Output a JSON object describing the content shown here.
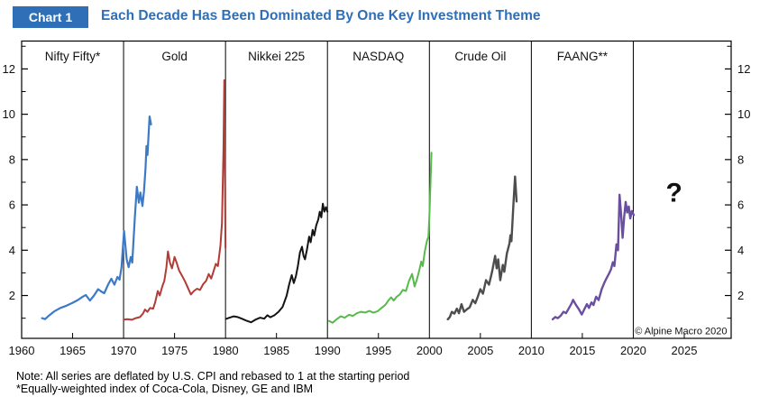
{
  "header": {
    "chart_label": "Chart 1",
    "title": "Each Decade Has Been Dominated By One Key Investment Theme",
    "accent_color": "#2e6fb8"
  },
  "notes": {
    "line1": "Note: All series are deflated by U.S. CPI and rebased to 1 at the starting period",
    "line2": "*Equally-weighted index of Coca-Cola, Disney, GE and IBM"
  },
  "chart_data": {
    "type": "line",
    "title": "Each Decade Has Been Dominated By One Key Investment Theme",
    "x_axis": {
      "range": [
        1960,
        2029.6
      ],
      "tick_labels": [
        1960,
        1965,
        1970,
        1975,
        1980,
        1985,
        1990,
        1995,
        2000,
        2005,
        2010,
        2015,
        2020,
        2025
      ],
      "minor_ticks": [
        1965,
        1975,
        1985,
        1995,
        2005,
        2015,
        2025
      ]
    },
    "y_axis": {
      "range": [
        0.11,
        13.23
      ],
      "major_ticks": [
        2,
        4,
        6,
        8,
        10,
        12
      ],
      "minor_ticks": [
        1,
        3,
        5,
        7,
        9,
        11,
        13
      ],
      "label_sides": "both"
    },
    "panel_dividers": [
      1970,
      1980,
      1990,
      2000,
      2010,
      2020
    ],
    "panels": [
      {
        "label": "Nifty Fifty*",
        "center_year": 1965
      },
      {
        "label": "Gold",
        "center_year": 1975
      },
      {
        "label": "Nikkei 225",
        "center_year": 1985
      },
      {
        "label": "NASDAQ",
        "center_year": 1995
      },
      {
        "label": "Crude Oil",
        "center_year": 2005
      },
      {
        "label": "FAANG**",
        "center_year": 2015
      }
    ],
    "series": [
      {
        "name": "Nifty Fifty",
        "color": "#3d7ac6",
        "width": 2.2,
        "points": [
          [
            1962.0,
            1.0
          ],
          [
            1962.3,
            0.96
          ],
          [
            1962.7,
            1.12
          ],
          [
            1963.2,
            1.3
          ],
          [
            1963.8,
            1.45
          ],
          [
            1964.4,
            1.55
          ],
          [
            1965.0,
            1.68
          ],
          [
            1965.5,
            1.8
          ],
          [
            1966.0,
            1.95
          ],
          [
            1966.3,
            2.02
          ],
          [
            1966.7,
            1.78
          ],
          [
            1967.1,
            2.0
          ],
          [
            1967.5,
            2.28
          ],
          [
            1967.8,
            2.18
          ],
          [
            1968.1,
            2.1
          ],
          [
            1968.5,
            2.5
          ],
          [
            1968.8,
            2.74
          ],
          [
            1969.1,
            2.48
          ],
          [
            1969.4,
            2.82
          ],
          [
            1969.6,
            2.7
          ],
          [
            1969.8,
            3.25
          ],
          [
            1970.05,
            4.85
          ],
          [
            1970.3,
            3.6
          ],
          [
            1970.5,
            3.25
          ],
          [
            1970.7,
            3.7
          ],
          [
            1970.85,
            3.45
          ],
          [
            1971.1,
            5.4
          ],
          [
            1971.3,
            6.8
          ],
          [
            1971.5,
            6.1
          ],
          [
            1971.65,
            6.55
          ],
          [
            1971.85,
            5.95
          ],
          [
            1972.0,
            6.6
          ],
          [
            1972.15,
            7.6
          ],
          [
            1972.25,
            8.6
          ],
          [
            1972.35,
            8.2
          ],
          [
            1972.55,
            9.9
          ],
          [
            1972.7,
            9.55
          ]
        ]
      },
      {
        "name": "Gold",
        "color": "#b23b36",
        "width": 2,
        "points": [
          [
            1970.0,
            0.94
          ],
          [
            1970.4,
            0.96
          ],
          [
            1970.8,
            0.93
          ],
          [
            1971.2,
            1.0
          ],
          [
            1971.6,
            1.05
          ],
          [
            1971.9,
            1.2
          ],
          [
            1972.1,
            1.38
          ],
          [
            1972.35,
            1.28
          ],
          [
            1972.6,
            1.45
          ],
          [
            1972.9,
            1.42
          ],
          [
            1973.1,
            1.7
          ],
          [
            1973.35,
            2.2
          ],
          [
            1973.55,
            2.0
          ],
          [
            1973.8,
            2.4
          ],
          [
            1974.0,
            2.65
          ],
          [
            1974.2,
            3.25
          ],
          [
            1974.35,
            3.95
          ],
          [
            1974.55,
            3.45
          ],
          [
            1974.75,
            3.2
          ],
          [
            1975.0,
            3.7
          ],
          [
            1975.2,
            3.45
          ],
          [
            1975.45,
            3.1
          ],
          [
            1975.7,
            2.9
          ],
          [
            1976.0,
            2.65
          ],
          [
            1976.3,
            2.35
          ],
          [
            1976.6,
            2.05
          ],
          [
            1976.9,
            2.2
          ],
          [
            1977.2,
            2.3
          ],
          [
            1977.5,
            2.25
          ],
          [
            1977.8,
            2.5
          ],
          [
            1978.1,
            2.65
          ],
          [
            1978.35,
            2.95
          ],
          [
            1978.6,
            2.75
          ],
          [
            1978.85,
            3.1
          ],
          [
            1979.05,
            3.4
          ],
          [
            1979.25,
            3.3
          ],
          [
            1979.5,
            4.2
          ],
          [
            1979.65,
            5.2
          ],
          [
            1979.8,
            8.5
          ],
          [
            1979.88,
            11.5
          ],
          [
            1980.0,
            4.1
          ]
        ]
      },
      {
        "name": "Nikkei 225",
        "color": "#141414",
        "width": 2,
        "points": [
          [
            1980.05,
            0.97
          ],
          [
            1980.4,
            1.02
          ],
          [
            1980.8,
            1.08
          ],
          [
            1981.2,
            1.05
          ],
          [
            1981.6,
            0.98
          ],
          [
            1982.0,
            0.9
          ],
          [
            1982.5,
            0.82
          ],
          [
            1983.0,
            0.95
          ],
          [
            1983.4,
            1.02
          ],
          [
            1983.8,
            0.98
          ],
          [
            1984.1,
            1.13
          ],
          [
            1984.4,
            1.04
          ],
          [
            1984.8,
            1.13
          ],
          [
            1985.2,
            1.28
          ],
          [
            1985.6,
            1.5
          ],
          [
            1986.0,
            2.0
          ],
          [
            1986.25,
            2.5
          ],
          [
            1986.5,
            2.9
          ],
          [
            1986.7,
            2.55
          ],
          [
            1986.9,
            2.85
          ],
          [
            1987.1,
            3.3
          ],
          [
            1987.3,
            3.9
          ],
          [
            1987.5,
            4.15
          ],
          [
            1987.65,
            3.75
          ],
          [
            1987.8,
            3.6
          ],
          [
            1988.0,
            4.05
          ],
          [
            1988.2,
            4.6
          ],
          [
            1988.35,
            4.35
          ],
          [
            1988.55,
            4.9
          ],
          [
            1988.7,
            4.65
          ],
          [
            1988.9,
            5.1
          ],
          [
            1989.1,
            5.35
          ],
          [
            1989.25,
            5.7
          ],
          [
            1989.4,
            5.45
          ],
          [
            1989.55,
            6.05
          ],
          [
            1989.7,
            5.7
          ],
          [
            1989.85,
            5.9
          ],
          [
            1990.0,
            5.7
          ]
        ]
      },
      {
        "name": "NASDAQ",
        "color": "#56bb4a",
        "width": 2,
        "points": [
          [
            1990.15,
            0.88
          ],
          [
            1990.5,
            0.8
          ],
          [
            1990.9,
            0.95
          ],
          [
            1991.3,
            1.08
          ],
          [
            1991.7,
            1.02
          ],
          [
            1992.1,
            1.15
          ],
          [
            1992.5,
            1.1
          ],
          [
            1992.9,
            1.22
          ],
          [
            1993.3,
            1.28
          ],
          [
            1993.7,
            1.25
          ],
          [
            1994.1,
            1.32
          ],
          [
            1994.5,
            1.24
          ],
          [
            1994.9,
            1.3
          ],
          [
            1995.3,
            1.45
          ],
          [
            1995.7,
            1.6
          ],
          [
            1996.0,
            1.8
          ],
          [
            1996.25,
            1.92
          ],
          [
            1996.5,
            1.78
          ],
          [
            1996.8,
            1.95
          ],
          [
            1997.1,
            2.05
          ],
          [
            1997.4,
            2.25
          ],
          [
            1997.7,
            2.2
          ],
          [
            1998.0,
            2.65
          ],
          [
            1998.3,
            2.95
          ],
          [
            1998.55,
            2.4
          ],
          [
            1998.8,
            2.75
          ],
          [
            1999.0,
            3.1
          ],
          [
            1999.2,
            3.5
          ],
          [
            1999.35,
            3.3
          ],
          [
            1999.55,
            3.95
          ],
          [
            1999.75,
            4.4
          ],
          [
            1999.9,
            4.6
          ],
          [
            2000.0,
            5.5
          ],
          [
            2000.2,
            8.3
          ]
        ]
      },
      {
        "name": "Crude Oil",
        "color": "#4d4d4d",
        "width": 2.4,
        "points": [
          [
            2001.8,
            0.95
          ],
          [
            2002.0,
            1.05
          ],
          [
            2002.2,
            1.28
          ],
          [
            2002.45,
            1.2
          ],
          [
            2002.7,
            1.42
          ],
          [
            2002.9,
            1.22
          ],
          [
            2003.15,
            1.62
          ],
          [
            2003.4,
            1.28
          ],
          [
            2003.7,
            1.4
          ],
          [
            2003.95,
            1.48
          ],
          [
            2004.25,
            1.81
          ],
          [
            2004.5,
            1.66
          ],
          [
            2004.75,
            1.95
          ],
          [
            2005.0,
            2.28
          ],
          [
            2005.25,
            2.08
          ],
          [
            2005.55,
            2.68
          ],
          [
            2005.85,
            2.48
          ],
          [
            2006.15,
            3.05
          ],
          [
            2006.45,
            3.75
          ],
          [
            2006.6,
            3.2
          ],
          [
            2006.75,
            3.6
          ],
          [
            2006.95,
            2.68
          ],
          [
            2007.2,
            3.35
          ],
          [
            2007.35,
            3.05
          ],
          [
            2007.6,
            3.85
          ],
          [
            2007.85,
            4.3
          ],
          [
            2007.95,
            4.66
          ],
          [
            2008.05,
            4.4
          ],
          [
            2008.25,
            6.1
          ],
          [
            2008.4,
            7.25
          ],
          [
            2008.55,
            6.15
          ]
        ]
      },
      {
        "name": "FAANG",
        "color": "#6a4fa1",
        "width": 2.4,
        "points": [
          [
            2012.1,
            0.95
          ],
          [
            2012.35,
            1.05
          ],
          [
            2012.6,
            1.0
          ],
          [
            2012.9,
            1.12
          ],
          [
            2013.15,
            1.28
          ],
          [
            2013.4,
            1.22
          ],
          [
            2013.7,
            1.45
          ],
          [
            2013.95,
            1.65
          ],
          [
            2014.1,
            1.81
          ],
          [
            2014.35,
            1.6
          ],
          [
            2014.65,
            1.4
          ],
          [
            2014.95,
            1.16
          ],
          [
            2015.2,
            1.4
          ],
          [
            2015.45,
            1.62
          ],
          [
            2015.65,
            1.45
          ],
          [
            2015.9,
            1.7
          ],
          [
            2016.1,
            1.58
          ],
          [
            2016.35,
            1.95
          ],
          [
            2016.6,
            1.8
          ],
          [
            2016.9,
            2.28
          ],
          [
            2017.15,
            2.55
          ],
          [
            2017.35,
            2.74
          ],
          [
            2017.6,
            2.95
          ],
          [
            2017.8,
            3.14
          ],
          [
            2018.0,
            3.47
          ],
          [
            2018.15,
            3.3
          ],
          [
            2018.35,
            4.26
          ],
          [
            2018.5,
            4.0
          ],
          [
            2018.65,
            6.45
          ],
          [
            2018.8,
            5.6
          ],
          [
            2018.95,
            4.55
          ],
          [
            2019.1,
            5.45
          ],
          [
            2019.25,
            6.13
          ],
          [
            2019.4,
            5.66
          ],
          [
            2019.55,
            5.93
          ],
          [
            2019.7,
            5.4
          ],
          [
            2019.85,
            5.73
          ],
          [
            2020.05,
            5.55
          ]
        ]
      }
    ],
    "annotations": [
      {
        "id": "question-mark",
        "text": "?",
        "x": 2024.0,
        "y": 6.55,
        "color": "#2e74b5",
        "font_size": 30,
        "bold": true
      },
      {
        "id": "copyright",
        "text": "© Alpine Macro 2020",
        "x": 2029.2,
        "y": 0.45,
        "color": "#222222",
        "font_size": 11,
        "anchor": "end"
      }
    ]
  }
}
